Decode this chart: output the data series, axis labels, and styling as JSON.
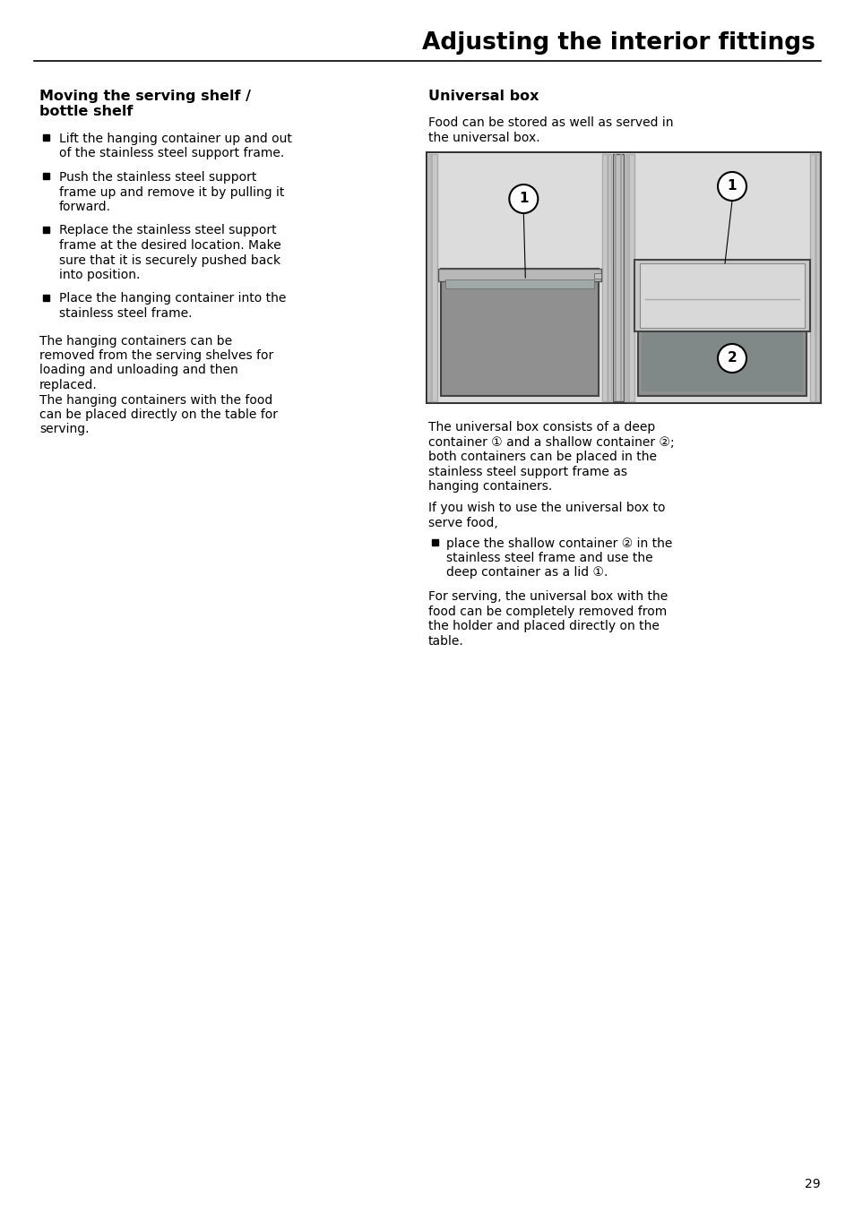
{
  "title": "Adjusting the interior fittings",
  "page_number": "29",
  "background_color": "#ffffff",
  "text_color": "#000000",
  "left_section_heading_line1": "Moving the serving shelf /",
  "left_section_heading_line2": "bottle shelf",
  "left_bullets": [
    [
      "Lift the hanging container up and out",
      "of the stainless steel support frame."
    ],
    [
      "Push the stainless steel support",
      "frame up and remove it by pulling it",
      "forward."
    ],
    [
      "Replace the stainless steel support",
      "frame at the desired location. Make",
      "sure that it is securely pushed back",
      "into position."
    ],
    [
      "Place the hanging container into the",
      "stainless steel frame."
    ]
  ],
  "left_body_paragraphs": [
    [
      "The hanging containers can be",
      "removed from the serving shelves for",
      "loading and unloading and then",
      "replaced."
    ],
    [
      "The hanging containers with the food",
      "can be placed directly on the table for",
      "serving."
    ]
  ],
  "right_section_heading": "Universal box",
  "right_intro_lines": [
    "Food can be stored as well as served in",
    "the universal box."
  ],
  "right_body1_lines": [
    "The universal box consists of a deep",
    "container ① and a shallow container ②;",
    "both containers can be placed in the",
    "stainless steel support frame as",
    "hanging containers."
  ],
  "right_body2_lines": [
    "If you wish to use the universal box to",
    "serve food,"
  ],
  "right_bullet_lines": [
    "place the shallow container ② in the",
    "stainless steel frame and use the",
    "deep container as a lid ①."
  ],
  "right_body3_lines": [
    "For serving, the universal box with the",
    "food can be completely removed from",
    "the holder and placed directly on the",
    "table."
  ]
}
